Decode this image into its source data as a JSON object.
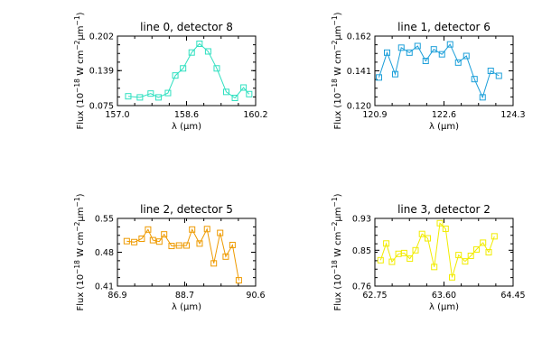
{
  "chart_data": [
    {
      "type": "line",
      "title": "line 0, detector 8",
      "xlabel": "λ (μm)",
      "ylabel_main": "Flux (10",
      "ylabel_exp1": "−18",
      "ylabel_mid": " W cm",
      "ylabel_exp2": "−2",
      "ylabel_unit": "μm",
      "ylabel_exp3": "−1",
      "ylabel_close": ")",
      "xlim": [
        157.0,
        160.2
      ],
      "ylim": [
        0.075,
        0.202
      ],
      "xticks": [
        "157.0",
        "158.6",
        "160.2"
      ],
      "xtick_values": [
        157.0,
        158.6,
        160.2
      ],
      "yticks": [
        "0.075",
        "0.139",
        "0.202"
      ],
      "ytick_values": [
        0.075,
        0.139,
        0.202
      ],
      "color": "#2fe0c0",
      "marker": "square",
      "x": [
        157.25,
        157.52,
        157.77,
        157.95,
        158.17,
        158.34,
        158.52,
        158.72,
        158.9,
        159.1,
        159.3,
        159.52,
        159.72,
        159.92,
        160.05
      ],
      "y": [
        0.092,
        0.09,
        0.097,
        0.09,
        0.098,
        0.13,
        0.143,
        0.172,
        0.188,
        0.174,
        0.143,
        0.1,
        0.089,
        0.108,
        0.096
      ],
      "x_order": [
        0,
        1,
        2,
        3,
        4,
        5,
        6,
        7,
        8,
        9,
        10,
        11,
        12,
        13,
        14
      ]
    },
    {
      "type": "line",
      "title": "line 1, detector 6",
      "xlabel": "λ (μm)",
      "ylabel_main": "Flux (10",
      "ylabel_exp1": "−18",
      "ylabel_mid": " W cm",
      "ylabel_exp2": "−2",
      "ylabel_unit": "μm",
      "ylabel_exp3": "−1",
      "ylabel_close": ")",
      "xlim": [
        120.9,
        124.3
      ],
      "ylim": [
        0.12,
        0.162
      ],
      "xticks": [
        "120.9",
        "122.6",
        "124.3"
      ],
      "xtick_values": [
        120.9,
        122.6,
        124.3
      ],
      "yticks": [
        "0.120",
        "0.141",
        "0.162"
      ],
      "ytick_values": [
        0.12,
        0.141,
        0.162
      ],
      "color": "#1c9fd9",
      "marker": "square",
      "x": [
        121.0,
        121.2,
        121.4,
        121.55,
        121.75,
        121.95,
        122.15,
        122.35,
        122.55,
        122.75,
        122.95,
        123.15,
        123.35,
        123.55,
        123.75,
        123.95
      ],
      "y": [
        0.137,
        0.152,
        0.139,
        0.155,
        0.152,
        0.156,
        0.147,
        0.154,
        0.151,
        0.157,
        0.146,
        0.15,
        0.136,
        0.125,
        0.141,
        0.138
      ],
      "x_order": [
        0,
        1,
        2,
        3,
        4,
        5,
        6,
        7,
        8,
        9,
        10,
        11,
        12,
        13,
        14,
        15
      ]
    },
    {
      "type": "line",
      "title": "line 2, detector 5",
      "xlabel": "λ (μm)",
      "ylabel_main": "Flux (10",
      "ylabel_exp1": "−18",
      "ylabel_mid": " W cm",
      "ylabel_exp2": "−2",
      "ylabel_unit": "μm",
      "ylabel_exp3": "−1",
      "ylabel_close": ")",
      "xlim": [
        86.9,
        90.6
      ],
      "ylim": [
        0.41,
        0.55
      ],
      "xticks": [
        "86.9",
        "88.7",
        "90.6"
      ],
      "xtick_values": [
        86.9,
        88.7,
        90.6
      ],
      "yticks": [
        "0.41",
        "0.48",
        "0.55"
      ],
      "ytick_values": [
        0.41,
        0.48,
        0.55
      ],
      "color": "#ee9a00",
      "marker": "square",
      "x": [
        87.15,
        87.35,
        87.55,
        87.72,
        87.85,
        88.02,
        88.15,
        88.35,
        88.55,
        88.75,
        88.9,
        89.1,
        89.3,
        89.48,
        89.65,
        89.8,
        89.98,
        90.15
      ],
      "y": [
        0.503,
        0.501,
        0.508,
        0.527,
        0.505,
        0.502,
        0.517,
        0.493,
        0.494,
        0.494,
        0.527,
        0.498,
        0.528,
        0.457,
        0.52,
        0.471,
        0.495,
        0.422
      ],
      "x_order": [
        0,
        1,
        2,
        3,
        4,
        5,
        6,
        7,
        8,
        9,
        10,
        11,
        12,
        13,
        14,
        15,
        16,
        17
      ]
    },
    {
      "type": "line",
      "title": "line 3, detector 2",
      "xlabel": "λ (μm)",
      "ylabel_main": "Flux (10",
      "ylabel_exp1": "−18",
      "ylabel_mid": " W cm",
      "ylabel_exp2": "−2",
      "ylabel_unit": "μm",
      "ylabel_exp3": "−1",
      "ylabel_close": ")",
      "xlim": [
        62.75,
        64.45
      ],
      "ylim": [
        0.76,
        0.93
      ],
      "xticks": [
        "62.75",
        "63.60",
        "64.45"
      ],
      "xtick_values": [
        62.75,
        63.6,
        64.45
      ],
      "yticks": [
        "0.76",
        "0.85",
        "0.93"
      ],
      "ytick_values": [
        0.76,
        0.85,
        0.93
      ],
      "color": "#f2ec00",
      "marker": "square",
      "x": [
        62.82,
        62.89,
        62.96,
        63.04,
        63.11,
        63.18,
        63.25,
        63.33,
        63.4,
        63.48,
        63.55,
        63.62,
        63.7,
        63.78,
        63.86,
        63.93,
        64.0,
        64.08,
        64.15,
        64.22
      ],
      "y": [
        0.825,
        0.867,
        0.821,
        0.841,
        0.843,
        0.829,
        0.85,
        0.891,
        0.88,
        0.808,
        0.918,
        0.904,
        0.782,
        0.838,
        0.822,
        0.836,
        0.852,
        0.869,
        0.845,
        0.885
      ],
      "x_order": [
        0,
        1,
        2,
        3,
        4,
        5,
        6,
        7,
        8,
        9,
        10,
        11,
        12,
        13,
        14,
        15,
        16,
        17,
        18,
        19
      ]
    }
  ]
}
